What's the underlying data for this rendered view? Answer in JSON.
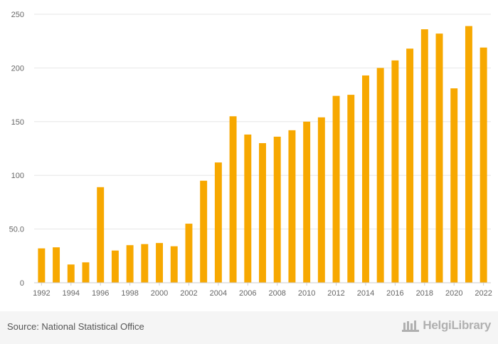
{
  "chart_data": {
    "type": "bar",
    "categories": [
      "1992",
      "1993",
      "1994",
      "1995",
      "1996",
      "1997",
      "1998",
      "1999",
      "2000",
      "2001",
      "2002",
      "2003",
      "2004",
      "2005",
      "2006",
      "2007",
      "2008",
      "2009",
      "2010",
      "2011",
      "2012",
      "2013",
      "2014",
      "2015",
      "2016",
      "2017",
      "2018",
      "2019",
      "2020",
      "2021",
      "2022"
    ],
    "values": [
      32,
      33,
      17,
      19,
      89,
      30,
      35,
      36,
      37,
      34,
      55,
      95,
      112,
      155,
      138,
      130,
      136,
      142,
      150,
      154,
      174,
      175,
      193,
      200,
      207,
      218,
      236,
      232,
      181,
      239,
      219
    ],
    "x_tick_labels": [
      "1992",
      "1994",
      "1996",
      "1998",
      "2000",
      "2002",
      "2004",
      "2006",
      "2008",
      "2010",
      "2012",
      "2014",
      "2016",
      "2018",
      "2020",
      "2022"
    ],
    "y_tick_labels": [
      "0",
      "50.0",
      "100",
      "150",
      "200",
      "250"
    ],
    "y_ticks": [
      0,
      50,
      100,
      150,
      200,
      250
    ],
    "ylim": [
      0,
      250
    ],
    "title": "",
    "xlabel": "",
    "ylabel": "",
    "grid": true,
    "bar_color": "#f7a800"
  },
  "footer": {
    "source": "Source: National Statistical Office",
    "brand": "HelgiLibrary"
  }
}
